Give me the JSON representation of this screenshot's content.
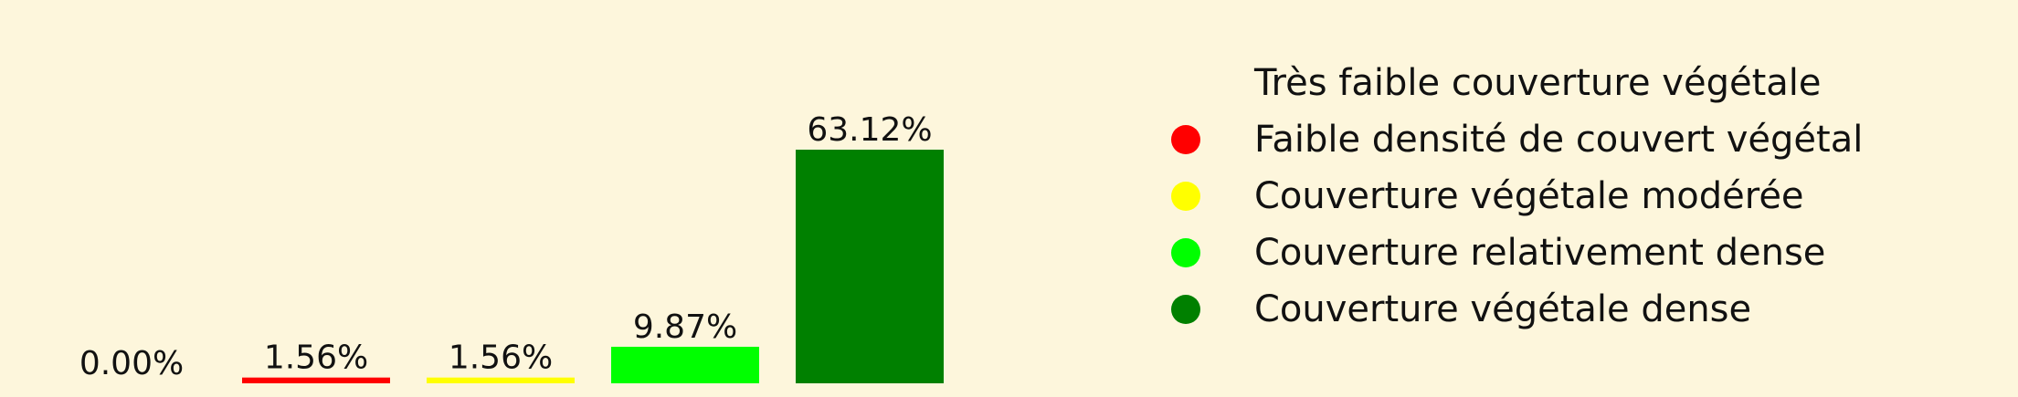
{
  "chart_data": {
    "type": "bar",
    "categories": [
      "Très faible couverture végétale",
      "Faible densité de couvert végétal",
      "Couverture végétale modérée",
      "Couverture relativement dense",
      "Couverture végétale dense"
    ],
    "values": [
      0.0,
      1.56,
      1.56,
      9.87,
      63.12
    ],
    "data_labels": [
      "0.00%",
      "1.56%",
      "1.56%",
      "9.87%",
      "63.12%"
    ],
    "colors": [
      "#fdf6dc",
      "#ff0000",
      "#ffff00",
      "#00ff00",
      "#008000"
    ],
    "ylim": [
      0,
      63.12
    ],
    "grid": false,
    "legend_position": "right",
    "title": "",
    "xlabel": "",
    "ylabel": ""
  }
}
